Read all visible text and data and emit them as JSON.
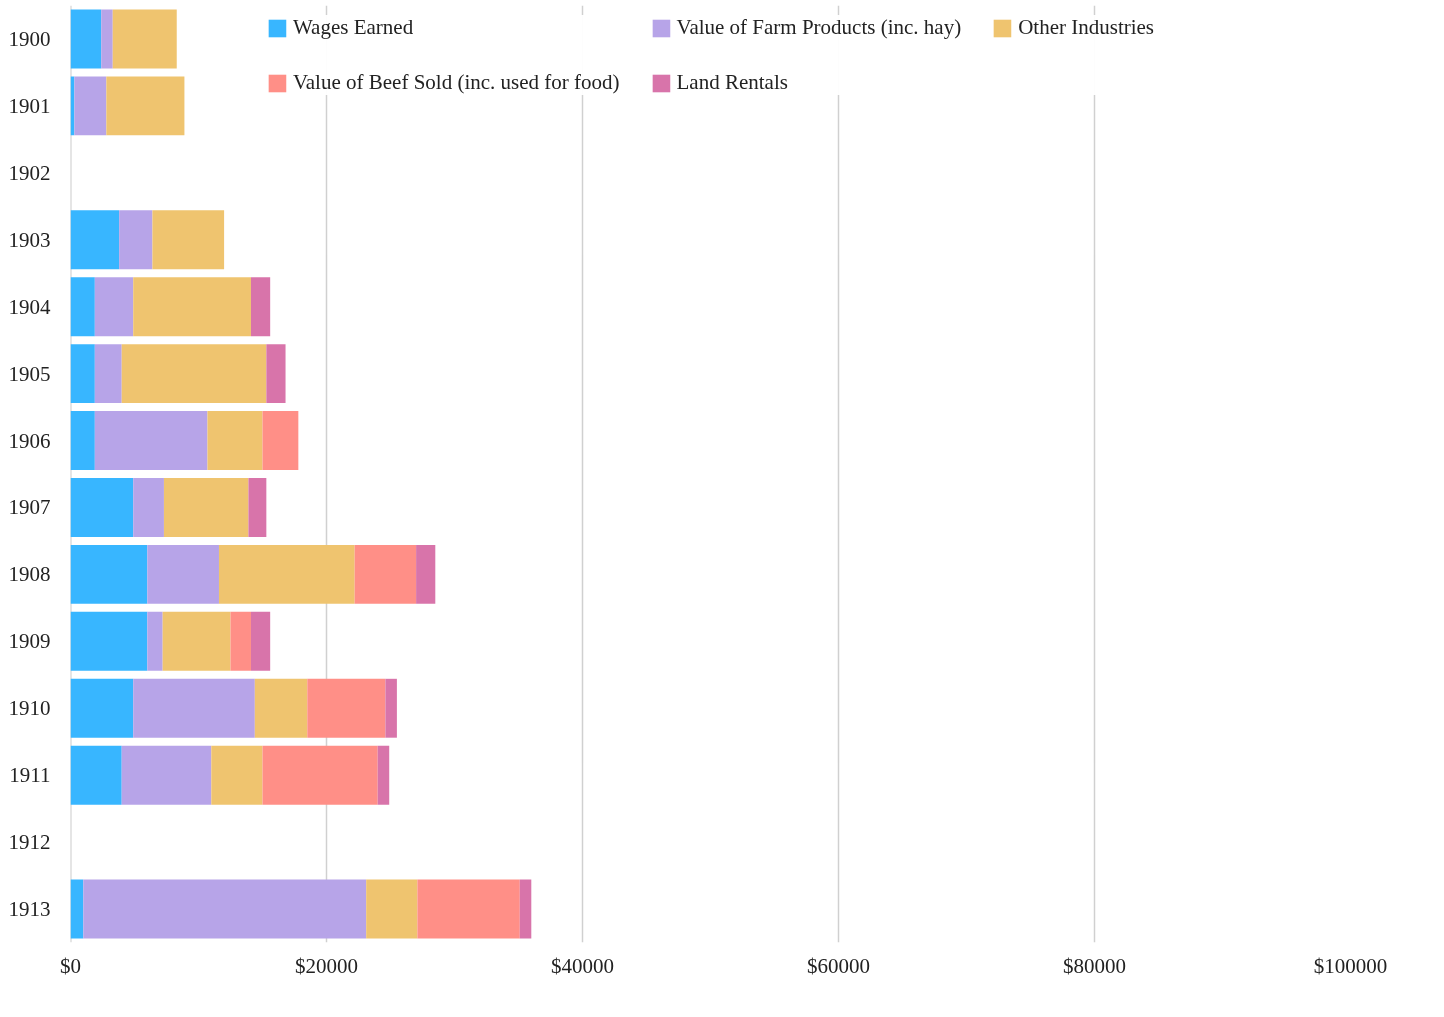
{
  "chart_data": {
    "type": "bar",
    "orientation": "horizontal",
    "stacked": true,
    "categories": [
      "1900",
      "1901",
      "1902",
      "1903",
      "1904",
      "1905",
      "1906",
      "1907",
      "1908",
      "1909",
      "1910",
      "1911",
      "1912",
      "1913"
    ],
    "series": [
      {
        "name": "Wages Earned",
        "color": "#38b6ff",
        "values": [
          2400,
          300,
          null,
          3800,
          1900,
          1900,
          1900,
          4900,
          6000,
          6000,
          4900,
          4000,
          null,
          1000
        ]
      },
      {
        "name": "Value of Farm Products (inc. hay)",
        "color": "#b7a4e8",
        "values": [
          900,
          2500,
          null,
          2600,
          3000,
          2100,
          8800,
          2400,
          5600,
          1200,
          9500,
          7000,
          null,
          22100
        ]
      },
      {
        "name": "Other Industries",
        "color": "#efc46f",
        "values": [
          5000,
          6100,
          null,
          5600,
          9200,
          11300,
          4300,
          6600,
          10600,
          5300,
          4100,
          4000,
          null,
          4000
        ]
      },
      {
        "name": "Value of Beef Sold (inc. used for food)",
        "color": "#ff8f87",
        "values": [
          null,
          null,
          null,
          null,
          null,
          null,
          2800,
          null,
          4800,
          1600,
          6100,
          9000,
          null,
          8000
        ]
      },
      {
        "name": "Land Rentals",
        "color": "#d874aa",
        "values": [
          null,
          null,
          null,
          null,
          1500,
          1500,
          null,
          1400,
          1500,
          1500,
          900,
          900,
          null,
          900
        ]
      }
    ],
    "xlim": [
      0,
      100000
    ],
    "xticks": [
      {
        "value": 0,
        "label": "$0"
      },
      {
        "value": 20000,
        "label": "$20000"
      },
      {
        "value": 40000,
        "label": "$40000"
      },
      {
        "value": 60000,
        "label": "$60000"
      },
      {
        "value": 80000,
        "label": "$80000"
      },
      {
        "value": 100000,
        "label": "$100000"
      }
    ],
    "grid": "x",
    "legend": "top"
  }
}
